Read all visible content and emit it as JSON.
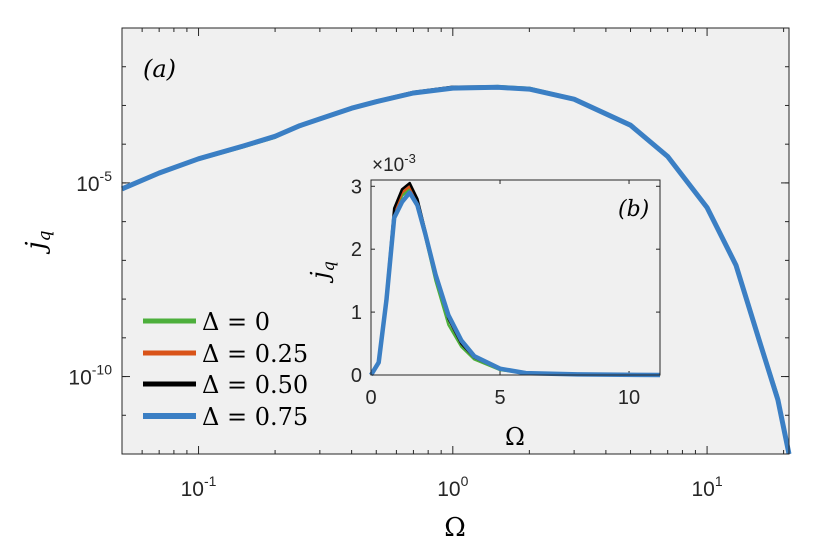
{
  "chart_data": [
    {
      "type": "line",
      "panel_label": "(a)",
      "xlabel": "Ω",
      "ylabel": "j_q",
      "x_scale": "log",
      "y_scale": "log",
      "xlim": [
        0.05,
        21
      ],
      "ylim": [
        1e-12,
        0.1
      ],
      "grid": false,
      "legend_position": "bottom-left",
      "x_ticks": [
        {
          "value": 0.1,
          "base": "10",
          "exp": "-1"
        },
        {
          "value": 1,
          "base": "10",
          "exp": "0"
        },
        {
          "value": 10,
          "base": "10",
          "exp": "1"
        }
      ],
      "y_ticks": [
        {
          "value": 1e-05,
          "base": "10",
          "exp": "-5"
        },
        {
          "value": 1e-10,
          "base": "10",
          "exp": "-10"
        }
      ],
      "series": [
        {
          "name": "Δ = 0",
          "color": "#4DAF3C",
          "x": [
            0.05,
            0.07,
            0.1,
            0.15,
            0.2,
            0.25,
            0.3,
            0.4,
            0.5,
            0.7,
            1.0,
            1.5,
            2.0,
            3.0,
            5.0,
            7.0,
            10.0,
            13.0,
            16.0,
            19.0,
            21.0
          ],
          "y": [
            7e-06,
            1.8e-05,
            4e-05,
            8.5e-05,
            0.00015,
            0.0003,
            0.00045,
            0.00085,
            0.00125,
            0.0021,
            0.00285,
            0.0031,
            0.0028,
            0.0015,
            0.00032,
            5e-05,
            2.4e-06,
            8e-08,
            1e-09,
            3e-11,
            1e-12
          ]
        },
        {
          "name": "Δ = 0.25",
          "color": "#D95319",
          "x": [
            0.05,
            0.07,
            0.1,
            0.15,
            0.2,
            0.25,
            0.3,
            0.4,
            0.5,
            0.7,
            1.0,
            1.5,
            2.0,
            3.0,
            5.0,
            7.0,
            10.0,
            13.0,
            16.0,
            19.0,
            21.0
          ],
          "y": [
            7e-06,
            1.8e-05,
            4.2e-05,
            9e-05,
            0.00016,
            0.0003,
            0.00046,
            0.00087,
            0.0013,
            0.0022,
            0.00295,
            0.00305,
            0.0027,
            0.00145,
            0.00031,
            4.8e-05,
            2.3e-06,
            7.5e-08,
            9e-10,
            2.5e-11,
            1e-12
          ]
        },
        {
          "name": "Δ = 0.50",
          "color": "#000000",
          "x": [
            0.05,
            0.07,
            0.1,
            0.15,
            0.2,
            0.25,
            0.3,
            0.4,
            0.5,
            0.7,
            1.0,
            1.5,
            2.0,
            3.0,
            5.0,
            7.0,
            10.0,
            13.0,
            16.0,
            19.0,
            21.0
          ],
          "y": [
            7e-06,
            1.8e-05,
            4.2e-05,
            9e-05,
            0.00016,
            0.000305,
            0.00046,
            0.00087,
            0.0013,
            0.0022,
            0.003,
            0.00305,
            0.0027,
            0.00145,
            0.00031,
            4.8e-05,
            2.3e-06,
            7.5e-08,
            9e-10,
            2.5e-11,
            1e-12
          ]
        },
        {
          "name": "Δ = 0.75",
          "color": "#3B7FC4",
          "x": [
            0.05,
            0.07,
            0.1,
            0.15,
            0.2,
            0.25,
            0.3,
            0.4,
            0.5,
            0.7,
            1.0,
            1.5,
            2.0,
            3.0,
            5.0,
            7.0,
            10.0,
            13.0,
            16.0,
            19.0,
            21.0
          ],
          "y": [
            7e-06,
            1.8e-05,
            4.2e-05,
            9e-05,
            0.00016,
            0.0003,
            0.00045,
            0.00085,
            0.00125,
            0.0021,
            0.0028,
            0.00295,
            0.00265,
            0.00145,
            0.00031,
            4.8e-05,
            2.3e-06,
            7.5e-08,
            9e-10,
            2.5e-11,
            1e-12
          ]
        }
      ]
    },
    {
      "type": "line",
      "panel_label": "(b)",
      "xlabel": "Ω",
      "ylabel": "j_q",
      "y_multiplier": "×10",
      "y_multiplier_exp": "-3",
      "x_scale": "linear",
      "y_scale": "linear",
      "xlim": [
        0,
        11.2
      ],
      "ylim": [
        0,
        3.1
      ],
      "x_ticks": [
        0,
        5,
        10
      ],
      "y_ticks": [
        0,
        1,
        2,
        3
      ],
      "series": [
        {
          "name": "Δ = 0",
          "color": "#4DAF3C",
          "x": [
            0,
            0.3,
            0.6,
            0.9,
            1.2,
            1.5,
            1.8,
            2.1,
            2.5,
            3.0,
            3.5,
            4.0,
            5.0,
            6.0,
            8.0,
            11.2
          ],
          "y": [
            0,
            0.2,
            1.2,
            2.5,
            2.85,
            2.95,
            2.7,
            2.2,
            1.5,
            0.8,
            0.45,
            0.25,
            0.08,
            0.03,
            0.01,
            0
          ]
        },
        {
          "name": "Δ = 0.25",
          "color": "#D95319",
          "x": [
            0,
            0.3,
            0.6,
            0.9,
            1.2,
            1.5,
            1.8,
            2.1,
            2.5,
            3.0,
            3.5,
            4.0,
            5.0,
            6.0,
            8.0,
            11.2
          ],
          "y": [
            0,
            0.2,
            1.25,
            2.6,
            2.9,
            3.0,
            2.75,
            2.3,
            1.6,
            0.9,
            0.5,
            0.28,
            0.09,
            0.03,
            0.01,
            0
          ]
        },
        {
          "name": "Δ = 0.50",
          "color": "#000000",
          "x": [
            0,
            0.3,
            0.6,
            0.9,
            1.2,
            1.5,
            1.8,
            2.1,
            2.5,
            3.0,
            3.5,
            4.0,
            5.0,
            6.0,
            8.0,
            11.2
          ],
          "y": [
            0,
            0.2,
            1.3,
            2.65,
            2.95,
            3.05,
            2.8,
            2.3,
            1.6,
            0.9,
            0.5,
            0.28,
            0.09,
            0.03,
            0.01,
            0
          ]
        },
        {
          "name": "Δ = 0.75",
          "color": "#3B7FC4",
          "x": [
            0,
            0.3,
            0.6,
            0.9,
            1.2,
            1.5,
            1.8,
            2.1,
            2.5,
            3.0,
            3.5,
            4.0,
            5.0,
            6.0,
            8.0,
            11.2
          ],
          "y": [
            0,
            0.2,
            1.2,
            2.5,
            2.75,
            2.9,
            2.7,
            2.25,
            1.6,
            0.95,
            0.55,
            0.3,
            0.1,
            0.03,
            0.01,
            0
          ]
        }
      ]
    }
  ],
  "legend": {
    "entries": [
      {
        "symbol": "Δ",
        "eq": "= 0",
        "color": "#4DAF3C"
      },
      {
        "symbol": "Δ",
        "eq": "= 0.25",
        "color": "#D95319"
      },
      {
        "symbol": "Δ",
        "eq": "= 0.50",
        "color": "#000000"
      },
      {
        "symbol": "Δ",
        "eq": "= 0.75",
        "color": "#3B7FC4"
      }
    ]
  },
  "colors": {
    "axes_background": "#F0F0F0",
    "axes_edge": "#262626"
  }
}
